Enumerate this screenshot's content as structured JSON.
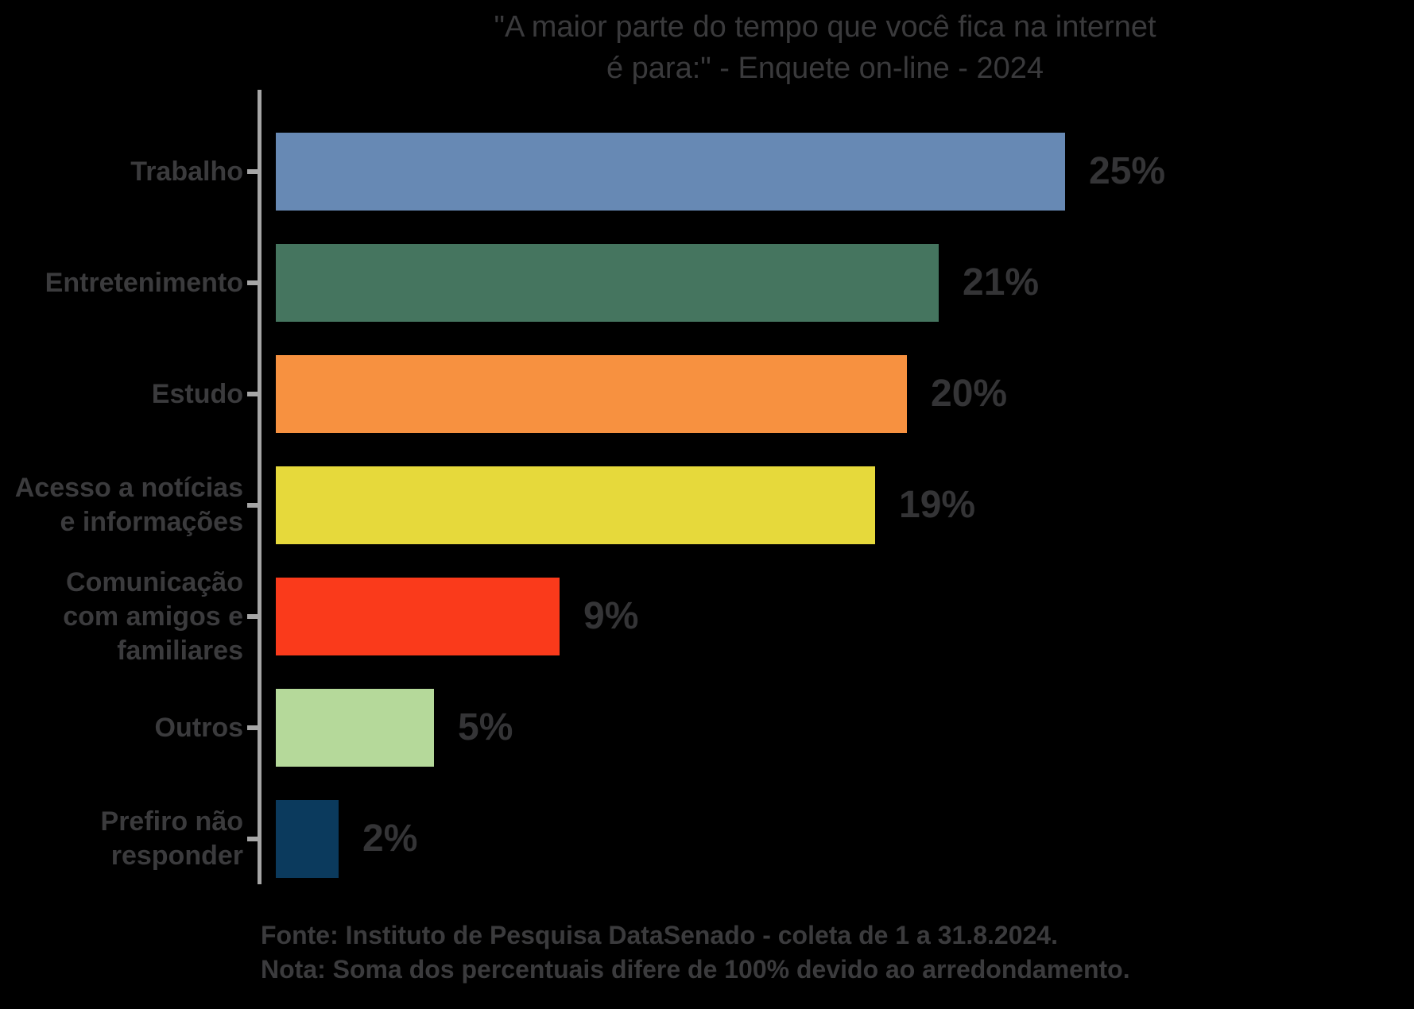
{
  "title": {
    "line1": "\"A maior parte do tempo que você fica na internet",
    "line2": "é para:\" - Enquete on-line - 2024"
  },
  "bars": [
    {
      "label_lines": [
        "Trabalho"
      ],
      "value": 25,
      "value_label": "25%",
      "color": "#6789b4"
    },
    {
      "label_lines": [
        "Entretenimento"
      ],
      "value": 21,
      "value_label": "21%",
      "color": "#45755f"
    },
    {
      "label_lines": [
        "Estudo"
      ],
      "value": 20,
      "value_label": "20%",
      "color": "#f79140"
    },
    {
      "label_lines": [
        "Acesso a notícias",
        "e informações"
      ],
      "value": 19,
      "value_label": "19%",
      "color": "#e6d93b"
    },
    {
      "label_lines": [
        "Comunicação",
        "com amigos e",
        "familiares"
      ],
      "value": 9,
      "value_label": "9%",
      "color": "#fa3a1b"
    },
    {
      "label_lines": [
        "Outros"
      ],
      "value": 5,
      "value_label": "5%",
      "color": "#b5d99a"
    },
    {
      "label_lines": [
        "Prefiro não",
        "responder"
      ],
      "value": 2,
      "value_label": "2%",
      "color": "#0b3a5d"
    }
  ],
  "footer": {
    "line1": "Fonte: Instituto de Pesquisa DataSenado - coleta de 1 a 31.8.2024.",
    "line2": "Nota: Soma dos percentuais difere de 100% devido ao arredondamento."
  },
  "colors": {
    "background": "#000000",
    "axis": "#a6a6a6",
    "title_text": "#3a3a3c",
    "label_text": "#3b3b3d",
    "value_text": "#343436"
  },
  "chart_data": {
    "type": "bar",
    "orientation": "horizontal",
    "title": "\"A maior parte do tempo que você fica na internet é para:\" - Enquete on-line - 2024",
    "categories": [
      "Trabalho",
      "Entretenimento",
      "Estudo",
      "Acesso a notícias e informações",
      "Comunicação com amigos e familiares",
      "Outros",
      "Prefiro não responder"
    ],
    "values": [
      25,
      21,
      20,
      19,
      9,
      5,
      2
    ],
    "unit": "%",
    "data_labels": [
      "25%",
      "21%",
      "20%",
      "19%",
      "9%",
      "5%",
      "2%"
    ],
    "xlabel": "",
    "ylabel": "",
    "xlim": [
      0,
      26
    ],
    "grid": false,
    "legend": "none",
    "source_note": "Fonte: Instituto de Pesquisa DataSenado - coleta de 1 a 31.8.2024.",
    "rounding_note": "Nota: Soma dos percentuais difere de 100% devido ao arredondamento."
  }
}
